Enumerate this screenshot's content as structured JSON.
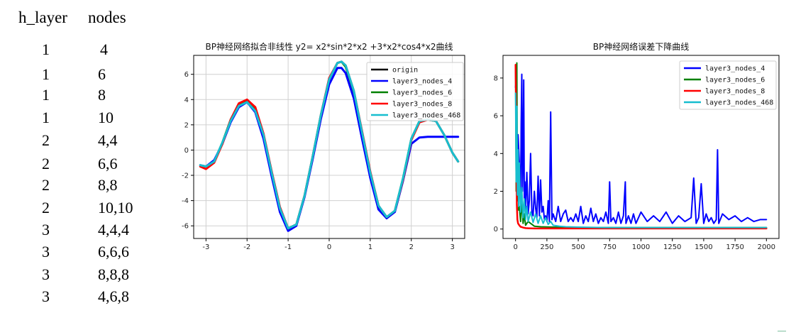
{
  "table": {
    "headers": [
      "h_layer",
      "nodes"
    ],
    "rows": [
      [
        "1",
        "4"
      ],
      [
        "1",
        "6"
      ],
      [
        "1",
        "8"
      ],
      [
        "1",
        "10"
      ],
      [
        "2",
        "4,4"
      ],
      [
        "2",
        "6,6"
      ],
      [
        "2",
        "8,8"
      ],
      [
        "2",
        "10,10"
      ],
      [
        "3",
        "4,4,4"
      ],
      [
        "3",
        "6,6,6"
      ],
      [
        "3",
        "8,8,8"
      ],
      [
        "3",
        "4,6,8"
      ]
    ]
  },
  "chart_data": [
    {
      "type": "line",
      "title": "BP神经网络拟合非线性   y2= x2*sin*2*x2 +3*x2*cos4*x2曲线",
      "xlabel": "",
      "ylabel": "",
      "xlim": [
        -3.3,
        3.3
      ],
      "ylim": [
        -7,
        7.5
      ],
      "xticks": [
        -3,
        -2,
        -1,
        0,
        1,
        2,
        3
      ],
      "yticks": [
        -6,
        -4,
        -2,
        0,
        2,
        4,
        6
      ],
      "grid": true,
      "legend_position": "top-right",
      "series": [
        {
          "name": "origin",
          "color": "#000000",
          "x": [
            -3.14,
            -3.0,
            -2.8,
            -2.6,
            -2.4,
            -2.2,
            -2.0,
            -1.8,
            -1.6,
            -1.4,
            -1.2,
            -1.0,
            -0.8,
            -0.6,
            -0.4,
            -0.2,
            0.0,
            0.2,
            0.3,
            0.4,
            0.6,
            0.8,
            1.0,
            1.2,
            1.4,
            1.6,
            1.8,
            2.0,
            2.2,
            2.4,
            2.6,
            2.8,
            3.0,
            3.14
          ],
          "y": [
            -1.2,
            -1.3,
            -0.9,
            0.6,
            2.4,
            3.6,
            3.9,
            3.2,
            1.2,
            -1.8,
            -4.6,
            -6.2,
            -5.9,
            -3.6,
            -0.5,
            2.8,
            5.6,
            6.9,
            7.0,
            6.6,
            4.6,
            1.4,
            -1.8,
            -4.4,
            -5.4,
            -4.8,
            -2.2,
            0.9,
            2.3,
            2.4,
            2.3,
            1.2,
            -0.2,
            -0.9
          ]
        },
        {
          "name": "layer3_nodes_4",
          "color": "#0000ff",
          "x": [
            -3.14,
            -3.0,
            -2.8,
            -2.6,
            -2.4,
            -2.2,
            -2.0,
            -1.8,
            -1.6,
            -1.4,
            -1.2,
            -1.0,
            -0.8,
            -0.6,
            -0.4,
            -0.2,
            0.0,
            0.2,
            0.3,
            0.4,
            0.6,
            0.8,
            1.0,
            1.2,
            1.4,
            1.6,
            1.8,
            2.0,
            2.2,
            2.4,
            2.6,
            2.8,
            3.0,
            3.14
          ],
          "y": [
            -1.2,
            -1.3,
            -0.8,
            0.5,
            2.2,
            3.4,
            3.8,
            3.0,
            0.9,
            -2.1,
            -4.9,
            -6.4,
            -6.0,
            -3.7,
            -0.7,
            2.5,
            5.2,
            6.5,
            6.5,
            6.1,
            4.1,
            0.9,
            -2.2,
            -4.7,
            -5.4,
            -4.9,
            -2.4,
            0.5,
            1.0,
            1.05,
            1.05,
            1.05,
            1.05,
            1.05
          ]
        },
        {
          "name": "layer3_nodes_6",
          "color": "#008000",
          "x": [
            -3.14,
            -3.0,
            -2.8,
            -2.6,
            -2.4,
            -2.2,
            -2.0,
            -1.8,
            -1.6,
            -1.4,
            -1.2,
            -1.0,
            -0.8,
            -0.6,
            -0.4,
            -0.2,
            0.0,
            0.2,
            0.3,
            0.4,
            0.6,
            0.8,
            1.0,
            1.2,
            1.4,
            1.6,
            1.8,
            2.0,
            2.2,
            2.4,
            2.6,
            2.8,
            3.0,
            3.14
          ],
          "y": [
            -1.2,
            -1.3,
            -0.9,
            0.6,
            2.4,
            3.6,
            3.9,
            3.2,
            1.2,
            -1.8,
            -4.6,
            -6.2,
            -5.9,
            -3.6,
            -0.5,
            2.8,
            5.6,
            6.9,
            7.0,
            6.6,
            4.6,
            1.4,
            -1.8,
            -4.4,
            -5.4,
            -4.8,
            -2.2,
            0.9,
            2.3,
            2.4,
            2.3,
            1.2,
            -0.2,
            -0.9
          ]
        },
        {
          "name": "layer3_nodes_8",
          "color": "#ff0000",
          "x": [
            -3.14,
            -3.0,
            -2.8,
            -2.6,
            -2.4,
            -2.2,
            -2.0,
            -1.8,
            -1.6,
            -1.4,
            -1.2,
            -1.0,
            -0.8,
            -0.6,
            -0.4,
            -0.2,
            0.0,
            0.2,
            0.3,
            0.4,
            0.6,
            0.8,
            1.0,
            1.2,
            1.4,
            1.6,
            1.8,
            2.0,
            2.2,
            2.4,
            2.6,
            2.8,
            3.0,
            3.14
          ],
          "y": [
            -1.3,
            -1.5,
            -1.0,
            0.5,
            2.4,
            3.7,
            4.0,
            3.4,
            1.3,
            -1.7,
            -4.5,
            -6.2,
            -5.9,
            -3.6,
            -0.5,
            2.8,
            5.7,
            6.9,
            7.0,
            6.7,
            4.7,
            1.5,
            -1.7,
            -4.4,
            -5.3,
            -4.8,
            -2.3,
            0.8,
            2.2,
            2.4,
            2.3,
            1.2,
            -0.2,
            -0.9
          ]
        },
        {
          "name": "layer3_nodes_468",
          "color": "#17becf",
          "x": [
            -3.14,
            -3.0,
            -2.8,
            -2.6,
            -2.4,
            -2.2,
            -2.0,
            -1.8,
            -1.6,
            -1.4,
            -1.2,
            -1.0,
            -0.8,
            -0.6,
            -0.4,
            -0.2,
            0.0,
            0.2,
            0.3,
            0.4,
            0.6,
            0.8,
            1.0,
            1.2,
            1.4,
            1.6,
            1.8,
            2.0,
            2.2,
            2.4,
            2.6,
            2.8,
            3.0,
            3.14
          ],
          "y": [
            -1.2,
            -1.3,
            -0.9,
            0.6,
            2.3,
            3.5,
            3.8,
            3.1,
            1.2,
            -1.8,
            -4.6,
            -6.2,
            -5.9,
            -3.6,
            -0.5,
            2.8,
            5.6,
            6.9,
            7.0,
            6.7,
            4.7,
            1.4,
            -1.8,
            -4.4,
            -5.3,
            -4.8,
            -2.2,
            0.9,
            2.3,
            2.4,
            2.3,
            1.2,
            -0.2,
            -0.9
          ]
        }
      ]
    },
    {
      "type": "line",
      "title": "BP神经网络误差下降曲线",
      "xlabel": "",
      "ylabel": "",
      "xlim": [
        -100,
        2100
      ],
      "ylim": [
        -0.5,
        9.2
      ],
      "xticks": [
        0,
        250,
        500,
        750,
        1000,
        1250,
        1500,
        1750,
        2000
      ],
      "yticks": [
        0,
        2,
        4,
        6,
        8
      ],
      "grid": false,
      "legend_position": "top-right",
      "series": [
        {
          "name": "layer3_nodes_4",
          "color": "#0000ff",
          "x": [
            0,
            5,
            10,
            20,
            30,
            40,
            45,
            50,
            55,
            60,
            65,
            70,
            75,
            80,
            90,
            100,
            110,
            120,
            130,
            140,
            150,
            160,
            170,
            180,
            190,
            200,
            210,
            220,
            230,
            240,
            250,
            260,
            270,
            280,
            290,
            300,
            320,
            340,
            360,
            380,
            400,
            420,
            440,
            460,
            480,
            500,
            520,
            540,
            560,
            580,
            600,
            620,
            640,
            660,
            680,
            700,
            720,
            740,
            750,
            760,
            780,
            800,
            820,
            840,
            860,
            875,
            880,
            900,
            920,
            940,
            960,
            980,
            1000,
            1050,
            1100,
            1150,
            1200,
            1250,
            1300,
            1350,
            1400,
            1420,
            1440,
            1460,
            1480,
            1500,
            1520,
            1540,
            1560,
            1580,
            1600,
            1610,
            1620,
            1650,
            1700,
            1750,
            1800,
            1850,
            1900,
            1950,
            2000
          ],
          "y": [
            7.5,
            8.0,
            2.5,
            5.0,
            3.5,
            1.5,
            5.5,
            8.2,
            2.0,
            4.0,
            7.9,
            1.2,
            2.5,
            1.0,
            3.0,
            0.8,
            1.5,
            4.0,
            0.9,
            0.7,
            2.0,
            1.1,
            0.6,
            2.8,
            0.7,
            2.6,
            0.9,
            1.2,
            0.5,
            0.7,
            0.4,
            1.5,
            0.4,
            6.2,
            0.5,
            0.8,
            0.4,
            1.2,
            0.4,
            0.8,
            1.0,
            0.4,
            0.6,
            0.4,
            0.8,
            0.4,
            1.2,
            0.3,
            0.7,
            0.4,
            1.1,
            0.4,
            0.8,
            0.3,
            0.6,
            0.4,
            0.9,
            0.3,
            2.5,
            0.4,
            0.6,
            0.3,
            0.9,
            0.3,
            0.7,
            2.5,
            0.3,
            0.7,
            0.3,
            0.8,
            0.3,
            0.6,
            0.9,
            0.4,
            0.7,
            0.4,
            0.9,
            0.3,
            0.7,
            0.4,
            0.6,
            2.7,
            0.3,
            0.6,
            2.4,
            0.3,
            0.8,
            0.4,
            0.6,
            0.3,
            0.5,
            4.2,
            0.3,
            0.8,
            0.5,
            0.7,
            0.4,
            0.6,
            0.4,
            0.5,
            0.5
          ]
        },
        {
          "name": "layer3_nodes_6",
          "color": "#008000",
          "x": [
            0,
            5,
            10,
            15,
            20,
            25,
            30,
            40,
            50,
            60,
            70,
            80,
            100,
            150,
            200,
            300,
            500,
            1000,
            1500,
            2000
          ],
          "y": [
            8.6,
            2.0,
            8.8,
            1.5,
            3.8,
            1.0,
            1.2,
            0.4,
            1.6,
            0.3,
            0.8,
            0.2,
            0.4,
            0.15,
            0.12,
            0.1,
            0.08,
            0.08,
            0.08,
            0.08
          ]
        },
        {
          "name": "layer3_nodes_8",
          "color": "#ff0000",
          "x": [
            0,
            5,
            10,
            15,
            20,
            30,
            40,
            50,
            60,
            80,
            100,
            150,
            200,
            300,
            500,
            1000,
            1500,
            2000
          ],
          "y": [
            8.7,
            6.0,
            1.3,
            0.5,
            0.3,
            0.2,
            0.12,
            0.1,
            0.08,
            0.05,
            0.04,
            0.03,
            0.03,
            0.03,
            0.03,
            0.03,
            0.03,
            0.03
          ]
        },
        {
          "name": "layer3_nodes_468",
          "color": "#17becf",
          "x": [
            0,
            5,
            10,
            15,
            20,
            25,
            30,
            40,
            50,
            60,
            70,
            80,
            90,
            100,
            120,
            140,
            160,
            180,
            200,
            220,
            240,
            260,
            280,
            300,
            350,
            400,
            500,
            700,
            1000,
            1500,
            2000
          ],
          "y": [
            7.2,
            2.5,
            6.5,
            1.8,
            4.2,
            1.2,
            3.5,
            0.9,
            2.2,
            0.6,
            1.6,
            0.5,
            1.2,
            0.4,
            0.9,
            0.35,
            0.8,
            0.3,
            0.7,
            0.3,
            0.6,
            0.25,
            0.4,
            0.2,
            0.15,
            0.12,
            0.1,
            0.08,
            0.08,
            0.08,
            0.08
          ]
        }
      ]
    }
  ]
}
